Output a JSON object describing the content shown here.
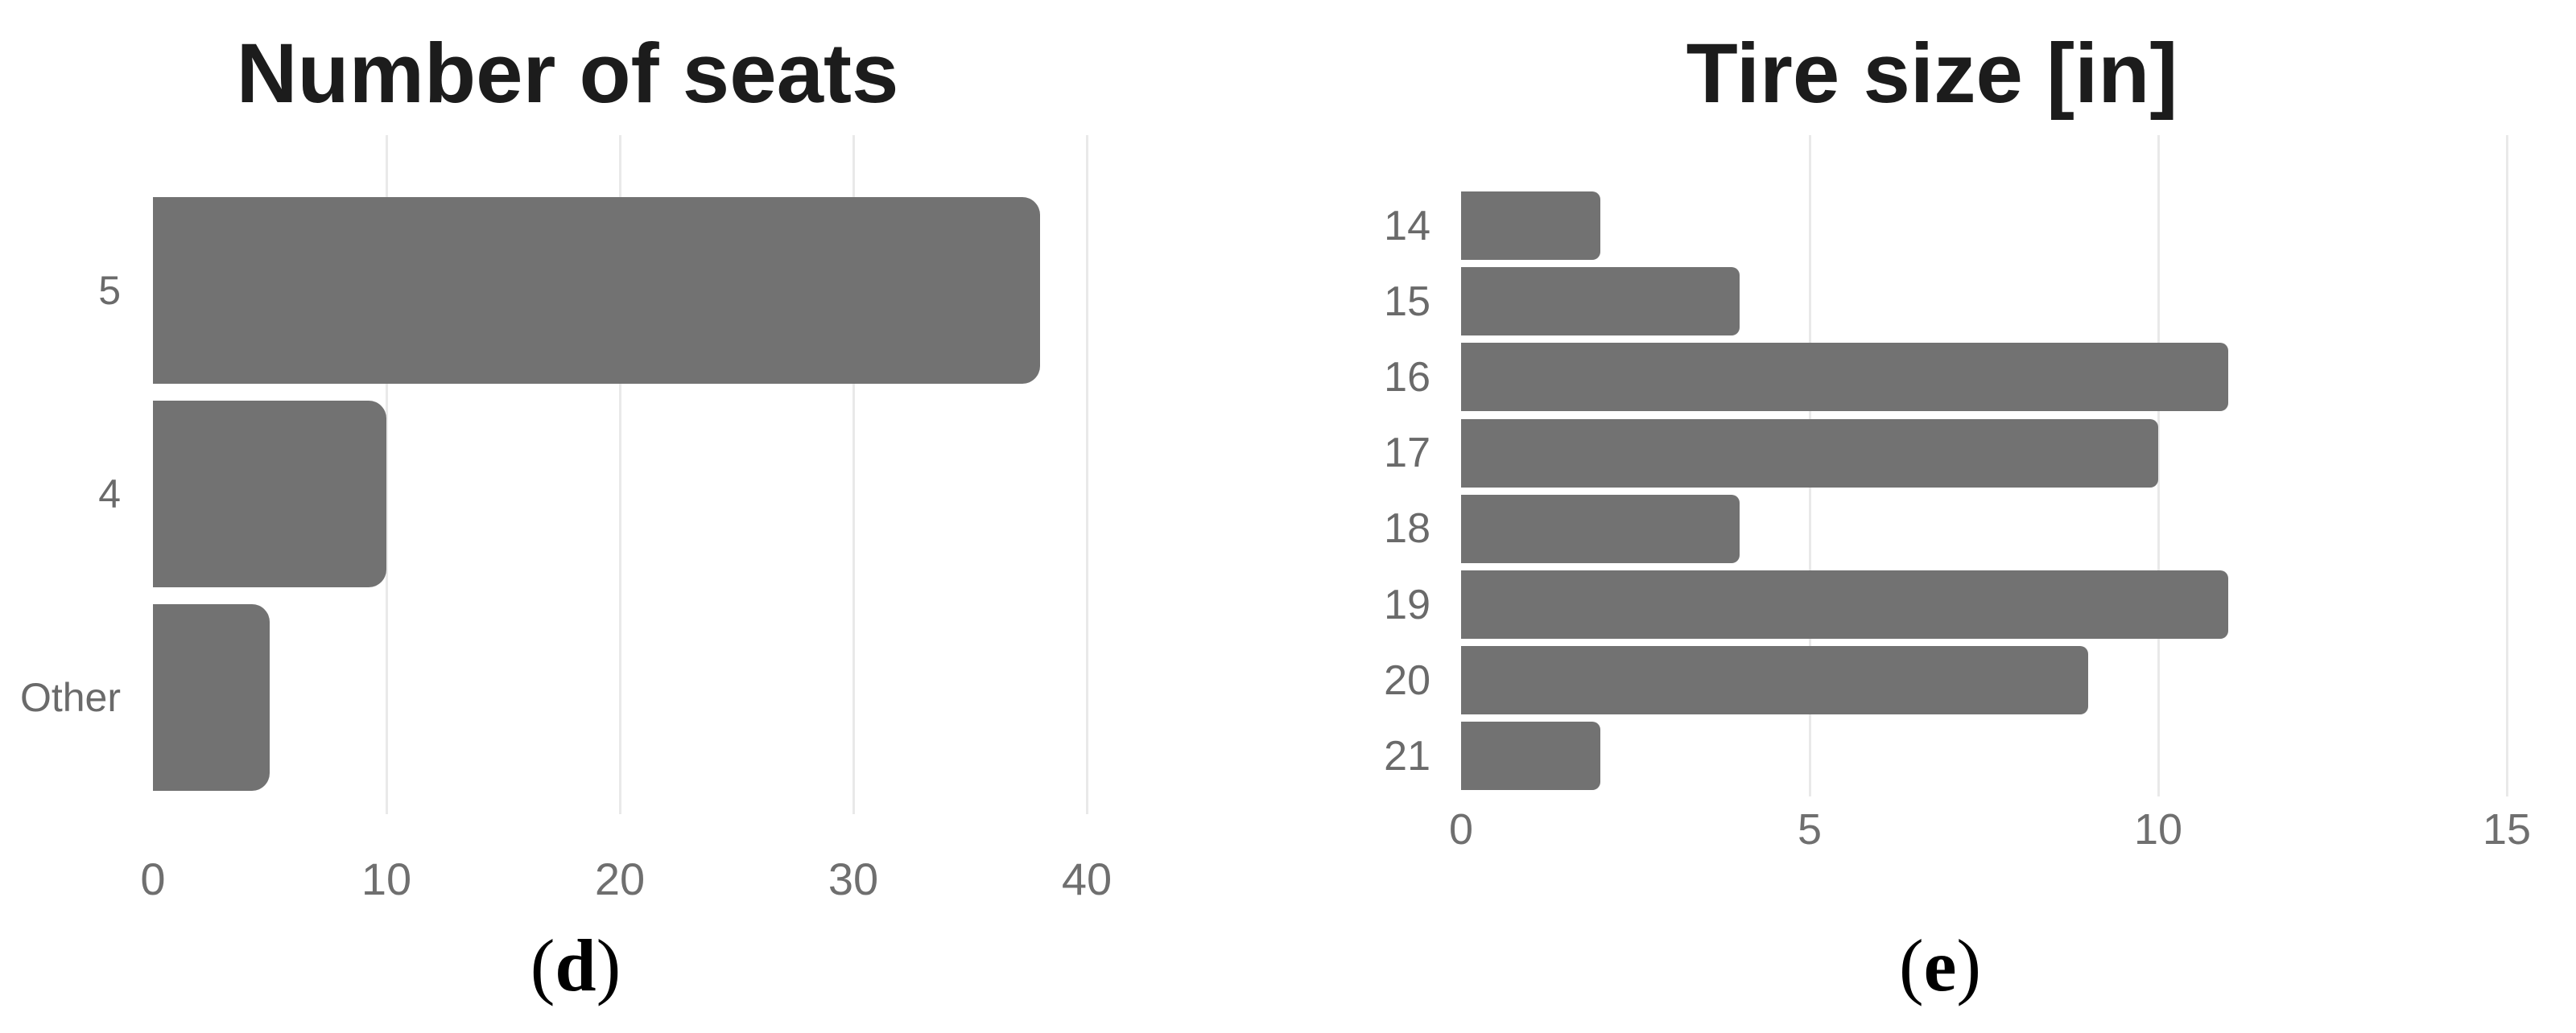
{
  "figure": {
    "panels": [
      {
        "caption_open": "(",
        "caption_letter": "d",
        "caption_close": ")"
      },
      {
        "caption_open": "(",
        "caption_letter": "e",
        "caption_close": ")"
      }
    ]
  },
  "chart_data": [
    {
      "type": "bar",
      "orientation": "horizontal",
      "title": "Number of seats",
      "categories": [
        "5",
        "4",
        "Other"
      ],
      "values": [
        38,
        10,
        5
      ],
      "xticks": [
        0,
        10,
        20,
        30,
        40
      ],
      "xlim": [
        0,
        43.8
      ],
      "ylabel": "",
      "xlabel": "",
      "grid": true,
      "legend": false,
      "panel_label": "(d)"
    },
    {
      "type": "bar",
      "orientation": "horizontal",
      "title": "Tire size [in]",
      "categories": [
        "14",
        "15",
        "16",
        "17",
        "18",
        "19",
        "20",
        "21"
      ],
      "values": [
        2,
        4,
        11,
        10,
        4,
        11,
        9,
        2
      ],
      "xticks": [
        0,
        5,
        10,
        15
      ],
      "xlim": [
        0,
        15.7
      ],
      "ylabel": "",
      "xlabel": "",
      "grid": true,
      "legend": false,
      "panel_label": "(e)"
    }
  ],
  "colors": {
    "bar": "#727272",
    "gridline": "#e9e9e9",
    "tick_label": "#6f6f6f",
    "category_label": "#6a6a6a",
    "title": "#1c1c1c",
    "caption": "#000000",
    "background": "#ffffff"
  }
}
